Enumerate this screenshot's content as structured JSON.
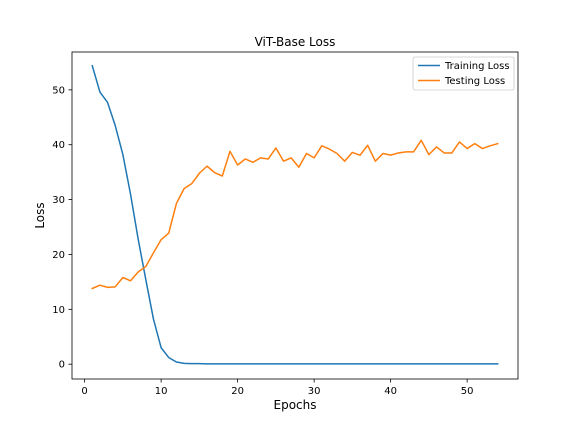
{
  "chart_data": {
    "type": "line",
    "title": "ViT-Base Loss",
    "xlabel": "Epochs",
    "ylabel": "Loss",
    "xlim": [
      -1.65,
      56.65
    ],
    "ylim": [
      -2.7,
      56.9
    ],
    "xticks": [
      0,
      10,
      20,
      30,
      40,
      50
    ],
    "yticks": [
      0,
      10,
      20,
      30,
      40,
      50
    ],
    "grid": false,
    "legend_position": "upper right",
    "series": [
      {
        "name": "Training Loss",
        "color": "#1f77b4",
        "x": [
          1,
          2,
          3,
          4,
          5,
          6,
          7,
          8,
          9,
          10,
          11,
          12,
          13,
          14,
          15,
          16,
          17,
          18,
          19,
          20,
          21,
          22,
          23,
          24,
          25,
          26,
          27,
          28,
          29,
          30,
          31,
          32,
          33,
          34,
          35,
          36,
          37,
          38,
          39,
          40,
          41,
          42,
          43,
          44,
          45,
          46,
          47,
          48,
          49,
          50,
          51,
          52,
          53,
          54
        ],
        "y": [
          54.4,
          49.6,
          47.7,
          43.5,
          38.2,
          31.0,
          22.8,
          15.4,
          8.2,
          3.0,
          1.2,
          0.4,
          0.15,
          0.1,
          0.1,
          0.05,
          0.05,
          0.05,
          0.05,
          0.05,
          0.05,
          0.05,
          0.05,
          0.05,
          0.05,
          0.05,
          0.05,
          0.05,
          0.05,
          0.05,
          0.05,
          0.05,
          0.05,
          0.05,
          0.05,
          0.05,
          0.05,
          0.05,
          0.05,
          0.05,
          0.05,
          0.05,
          0.05,
          0.05,
          0.05,
          0.05,
          0.05,
          0.05,
          0.05,
          0.05,
          0.05,
          0.05,
          0.05,
          0.05
        ]
      },
      {
        "name": "Testing Loss",
        "color": "#ff7f0e",
        "x": [
          1,
          2,
          3,
          4,
          5,
          6,
          7,
          8,
          9,
          10,
          11,
          12,
          13,
          14,
          15,
          16,
          17,
          18,
          19,
          20,
          21,
          22,
          23,
          24,
          25,
          26,
          27,
          28,
          29,
          30,
          31,
          32,
          33,
          34,
          35,
          36,
          37,
          38,
          39,
          40,
          41,
          42,
          43,
          44,
          45,
          46,
          47,
          48,
          49,
          50,
          51,
          52,
          53,
          54
        ],
        "y": [
          13.8,
          14.4,
          14.0,
          14.1,
          15.8,
          15.2,
          16.8,
          17.8,
          20.3,
          22.7,
          23.9,
          29.3,
          32.0,
          32.9,
          34.8,
          36.1,
          34.9,
          34.3,
          38.8,
          36.3,
          37.4,
          36.8,
          37.6,
          37.4,
          39.4,
          37.0,
          37.6,
          35.9,
          38.4,
          37.6,
          39.8,
          39.2,
          38.4,
          37.0,
          38.6,
          38.1,
          39.9,
          37.0,
          38.4,
          38.1,
          38.5,
          38.7,
          38.7,
          40.8,
          38.2,
          39.6,
          38.5,
          38.5,
          40.5,
          39.3,
          40.2,
          39.3,
          39.8,
          40.2
        ]
      }
    ]
  }
}
